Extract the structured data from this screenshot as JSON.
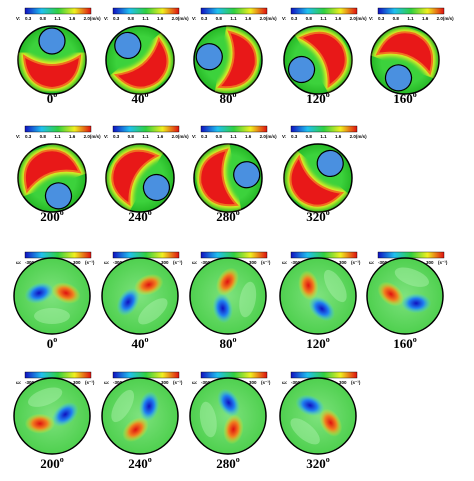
{
  "velocity": {
    "legend": [
      "V:",
      "0.3",
      "0.8",
      "1.1",
      "1.6",
      "2.0(m/s)"
    ],
    "angles": [
      0,
      40,
      80,
      120,
      160,
      200,
      240,
      280,
      320
    ]
  },
  "vorticity": {
    "legend": [
      "ω:",
      "-300",
      "-160",
      "0",
      "160",
      "300",
      "(s⁻¹)"
    ],
    "angles": [
      0,
      40,
      80,
      120,
      160,
      200,
      240,
      280,
      320
    ]
  },
  "degree_mark": "o"
}
